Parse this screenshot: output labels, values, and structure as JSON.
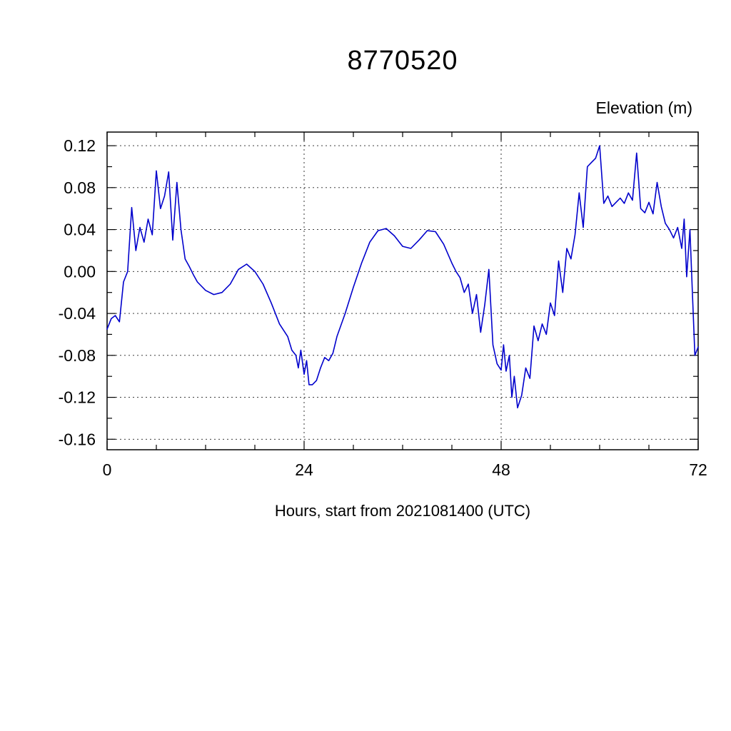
{
  "chart_data": {
    "type": "line",
    "title": "8770520",
    "xlabel": "Hours, start from 2021081400 (UTC)",
    "ylabel": "Elevation (m)",
    "xlim": [
      0,
      72
    ],
    "ylim": [
      -0.17,
      0.133
    ],
    "x_major_ticks": [
      0,
      24,
      48,
      72
    ],
    "x_minor_step": 6,
    "y_major_ticks": [
      -0.16,
      -0.12,
      -0.08,
      -0.04,
      0,
      0.04,
      0.08,
      0.12
    ],
    "y_minor_ticks": [
      -0.14,
      -0.1,
      -0.06,
      -0.02,
      0.02,
      0.06,
      0.1
    ],
    "grid": {
      "x": [
        24,
        48
      ],
      "y": [
        -0.16,
        -0.12,
        -0.08,
        -0.04,
        0,
        0.04,
        0.08,
        0.12
      ],
      "style": "dashed"
    },
    "legend": "none",
    "line_color": "#0000cc",
    "series": [
      {
        "name": "elevation",
        "x": [
          0,
          0.5,
          1,
          1.5,
          2,
          2.5,
          3,
          3.5,
          4,
          4.5,
          5,
          5.5,
          6,
          6.5,
          7,
          7.5,
          8,
          8.5,
          9,
          9.5,
          10,
          10.5,
          11,
          12,
          13,
          14,
          15,
          16,
          17,
          18,
          19,
          20,
          21,
          22,
          22.5,
          23,
          23.3,
          23.6,
          24,
          24.3,
          24.6,
          25,
          25.5,
          26,
          26.5,
          27,
          27.5,
          28,
          29,
          30,
          31,
          32,
          33,
          34,
          35,
          36,
          37,
          38,
          39,
          40,
          41,
          42,
          42.5,
          43,
          43.5,
          44,
          44.5,
          45,
          45.5,
          46,
          46.5,
          47,
          47.5,
          48,
          48.3,
          48.6,
          49,
          49.3,
          49.6,
          50,
          50.5,
          51,
          51.5,
          52,
          52.5,
          53,
          53.5,
          54,
          54.5,
          55,
          55.5,
          56,
          56.5,
          57,
          57.5,
          58,
          58.5,
          59,
          59.5,
          60,
          60.5,
          61,
          61.5,
          62,
          62.5,
          63,
          63.5,
          64,
          64.5,
          65,
          65.5,
          66,
          66.5,
          67,
          67.5,
          68,
          68.5,
          69,
          69.5,
          70,
          70.3,
          70.6,
          71,
          71.3,
          71.6,
          72
        ],
        "y": [
          -0.055,
          -0.045,
          -0.042,
          -0.048,
          -0.01,
          0,
          0.061,
          0.02,
          0.042,
          0.028,
          0.05,
          0.035,
          0.096,
          0.06,
          0.072,
          0.095,
          0.03,
          0.085,
          0.04,
          0.012,
          0.005,
          -0.003,
          -0.01,
          -0.018,
          -0.022,
          -0.02,
          -0.012,
          0.002,
          0.007,
          0,
          -0.012,
          -0.03,
          -0.05,
          -0.062,
          -0.075,
          -0.08,
          -0.092,
          -0.075,
          -0.098,
          -0.085,
          -0.108,
          -0.108,
          -0.104,
          -0.092,
          -0.082,
          -0.085,
          -0.078,
          -0.062,
          -0.04,
          -0.015,
          0.008,
          0.028,
          0.039,
          0.041,
          0.034,
          0.024,
          0.022,
          0.03,
          0.039,
          0.038,
          0.026,
          0.008,
          0,
          -0.006,
          -0.02,
          -0.012,
          -0.04,
          -0.022,
          -0.058,
          -0.032,
          0.002,
          -0.07,
          -0.088,
          -0.094,
          -0.07,
          -0.095,
          -0.08,
          -0.12,
          -0.1,
          -0.13,
          -0.118,
          -0.092,
          -0.102,
          -0.052,
          -0.066,
          -0.05,
          -0.06,
          -0.03,
          -0.042,
          0.01,
          -0.02,
          0.022,
          0.012,
          0.035,
          0.075,
          0.042,
          0.1,
          0.104,
          0.108,
          0.12,
          0.065,
          0.072,
          0.062,
          0.066,
          0.07,
          0.065,
          0.075,
          0.068,
          0.113,
          0.06,
          0.056,
          0.066,
          0.055,
          0.085,
          0.062,
          0.046,
          0.04,
          0.032,
          0.042,
          0.022,
          0.05,
          -0.005,
          0.04,
          -0.02,
          -0.08,
          -0.072
        ]
      }
    ]
  }
}
